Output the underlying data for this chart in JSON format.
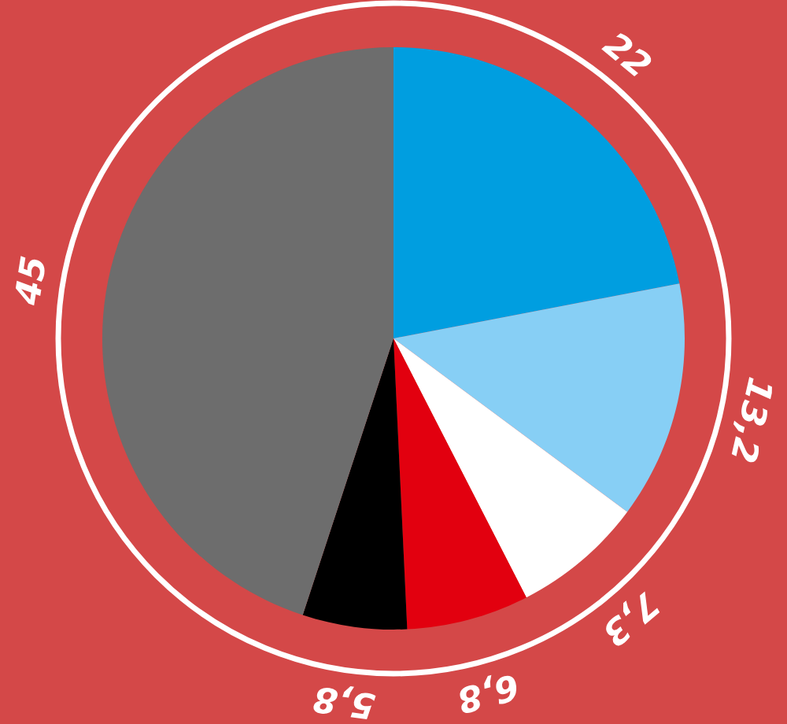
{
  "chart_data": {
    "type": "pie",
    "categories": [
      null,
      null,
      null,
      null,
      null,
      null
    ],
    "values": [
      22,
      13.2,
      7.3,
      6.8,
      5.8,
      45
    ],
    "colors": [
      "#009ee0",
      "#87cff5",
      "#ffffff",
      "#e2000f",
      "#000000",
      "#6d6d6d"
    ],
    "value_labels": [
      "22",
      "13,2",
      "7,3",
      "6,8",
      "5,8",
      "45"
    ]
  }
}
